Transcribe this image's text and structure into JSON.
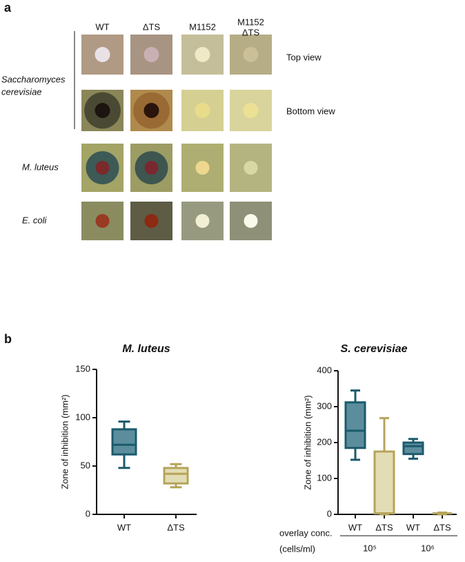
{
  "panel_a": {
    "label": "a",
    "columns": [
      [
        "WT"
      ],
      [
        "ΔTS"
      ],
      [
        "M1152"
      ],
      [
        "M1152",
        "ΔTS"
      ]
    ],
    "group_label": [
      "Saccharomyces",
      "cerevisiae"
    ],
    "view_labels": [
      "Top view",
      "Bottom view"
    ],
    "row_labels": [
      "M. luteus",
      "E. coli"
    ]
  },
  "panel_b": {
    "label": "b"
  },
  "chart_data": [
    {
      "type": "box",
      "title": "M. luteus",
      "y_label": "Zone of inhibition (mm²)",
      "categories": [
        "WT",
        "ΔTS"
      ],
      "boxes": [
        {
          "min": 48,
          "q1": 62,
          "median": 72,
          "q3": 88,
          "max": 96,
          "color": "#1b5a6c",
          "fill": "#5b8d9c"
        },
        {
          "min": 28,
          "q1": 32,
          "median": 42,
          "q3": 48,
          "max": 52,
          "color": "#b5a45a",
          "fill": "#e2ddb4"
        }
      ],
      "ylim": [
        0,
        150
      ],
      "yticks": [
        0,
        50,
        100,
        150
      ]
    },
    {
      "type": "box",
      "title": "S. cerevisiae",
      "y_label": "Zone of inhibition (mm²)",
      "categories": [
        "WT",
        "ΔTS",
        "WT",
        "ΔTS"
      ],
      "boxes": [
        {
          "min": 152,
          "q1": 185,
          "median": 233,
          "q3": 312,
          "max": 345,
          "color": "#1b5a6c",
          "fill": "#5b8d9c"
        },
        {
          "min": 0,
          "q1": 3,
          "median": 3,
          "q3": 175,
          "max": 268,
          "color": "#b5a45a",
          "fill": "#e2ddb4"
        },
        {
          "min": 155,
          "q1": 168,
          "median": 190,
          "q3": 200,
          "max": 210,
          "color": "#1b5a6c",
          "fill": "#5b8d9c"
        },
        {
          "min": 0,
          "q1": 3,
          "median": 3,
          "q3": 3,
          "max": 5,
          "color": "#b5a45a",
          "fill": "#e2ddb4"
        }
      ],
      "groups": [
        "10⁵",
        "10⁶"
      ],
      "x_label": [
        "overlay conc.",
        "(cells/ml)"
      ],
      "ylim": [
        0,
        400
      ],
      "yticks": [
        0,
        100,
        200,
        300,
        400
      ]
    }
  ]
}
